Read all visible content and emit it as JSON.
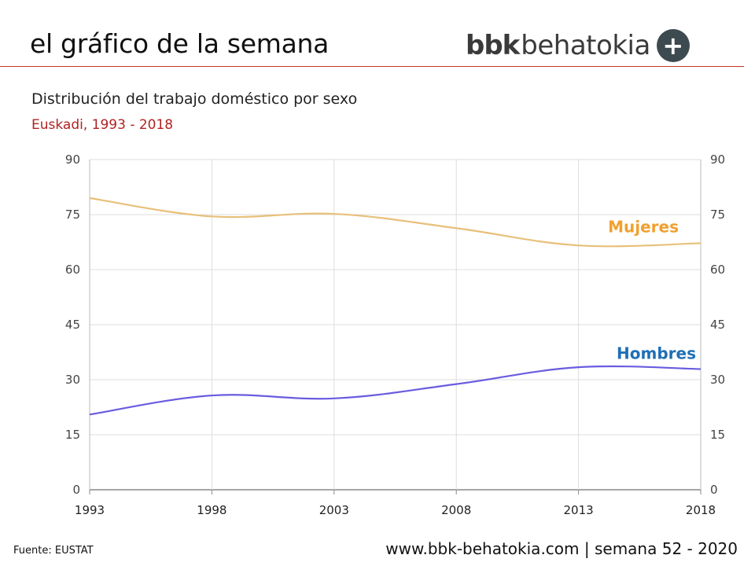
{
  "header": {
    "title": "el gráfico de la semana",
    "brand_bold": "bbk",
    "brand_light": "behatokia",
    "brand_plus": "+"
  },
  "subtitle": "Distribución del trabajo doméstico por sexo",
  "region": "Euskadi, 1993 - 2018",
  "footer": {
    "source": "Fuente:  EUSTAT",
    "site": "www.bbk-behatokia.com | semana 52 - 2020"
  },
  "colors": {
    "accent": "#c0392b",
    "mujeres": "#e8c07a",
    "mujeres_label": "#f0a030",
    "hombres": "#6a5ce0",
    "hombres_label": "#1f6fb5",
    "grid": "#dddddd",
    "tick": "#444444"
  },
  "chart_data": {
    "type": "line",
    "title": "Distribución del trabajo doméstico por sexo",
    "x": [
      1993,
      1998,
      2003,
      2008,
      2013,
      2018
    ],
    "x_ticks": [
      "1993",
      "1998",
      "2003",
      "2008",
      "2013",
      "2018"
    ],
    "y_ticks": [
      "0",
      "15",
      "30",
      "45",
      "60",
      "75",
      "90"
    ],
    "ylim": [
      0,
      90
    ],
    "xlabel": "",
    "ylabel": "",
    "grid": true,
    "series": [
      {
        "name": "Mujeres",
        "values": [
          79.5,
          74.5,
          75.2,
          71.3,
          66.6,
          67.2
        ]
      },
      {
        "name": "Hombres",
        "values": [
          20.5,
          25.7,
          24.9,
          28.8,
          33.4,
          32.9
        ]
      }
    ]
  }
}
